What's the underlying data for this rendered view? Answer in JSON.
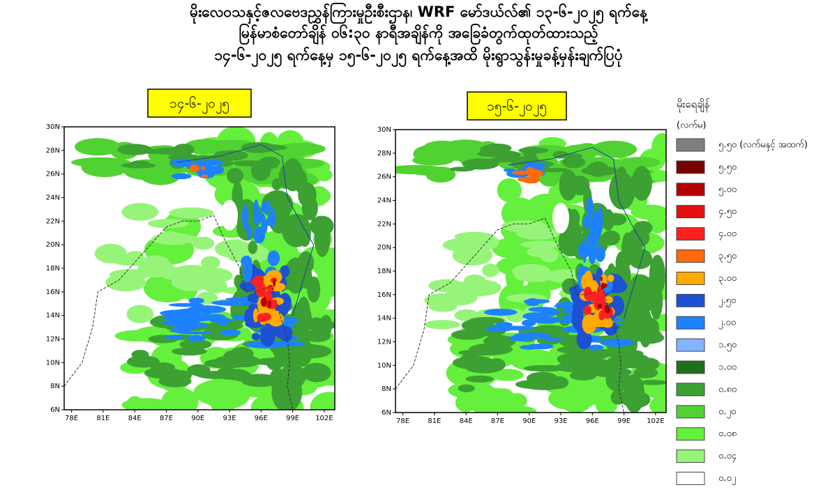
{
  "header": {
    "lines": [
      "မိုးလေဝသနှင့်ဇလဗေဒညွှန်ကြားမှုဦးစီးဌာန၊ WRF မော်ဒယ်လ်၏ ၁၃-၆-၂၀၂၅ ရက်နေ့",
      "မြန်မာစံတော်ချိန် ၀၆:၃၀ နာရီအချိန်ကို အခြေခံတွက်ထုတ်ထားသည့်",
      "၁၄-၆-၂၀၂၅ ရက်နေ့မှ ၁၅-၆-၂၀၂၅ ရက်နေ့အထိ မိုးရွာသွန်းမှုခန့်မှန်းချက်ပြပုံ"
    ]
  },
  "maps": [
    {
      "label": "၁၄-၆-၂၀၂၅"
    },
    {
      "label": "၁၅-၆-၂၀၂၅"
    }
  ],
  "axes": {
    "xlim": [
      77.3,
      103
    ],
    "ylim": [
      6,
      30
    ],
    "xticks": [
      {
        "value": 78,
        "label": "78E"
      },
      {
        "value": 81,
        "label": "81E"
      },
      {
        "value": 84,
        "label": "84E"
      },
      {
        "value": 87,
        "label": "87E"
      },
      {
        "value": 90,
        "label": "90E"
      },
      {
        "value": 93,
        "label": "93E"
      },
      {
        "value": 96,
        "label": "96E"
      },
      {
        "value": 99,
        "label": "99E"
      },
      {
        "value": 102,
        "label": "102E"
      }
    ],
    "yticks": [
      {
        "value": 6,
        "label": "6N"
      },
      {
        "value": 8,
        "label": "8N"
      },
      {
        "value": 10,
        "label": "10N"
      },
      {
        "value": 12,
        "label": "12N"
      },
      {
        "value": 14,
        "label": "14N"
      },
      {
        "value": 16,
        "label": "16N"
      },
      {
        "value": 18,
        "label": "18N"
      },
      {
        "value": 20,
        "label": "20N"
      },
      {
        "value": 22,
        "label": "22N"
      },
      {
        "value": 24,
        "label": "24N"
      },
      {
        "value": 26,
        "label": "26N"
      },
      {
        "value": 28,
        "label": "28N"
      },
      {
        "value": 30,
        "label": "30N"
      }
    ]
  },
  "legend": {
    "title": "မိုးရေချိန်",
    "unit": "(လက်မ)",
    "items": [
      {
        "label": "၅.၅၀ (လက်မနှင့် အထက်)",
        "color": "#7f7f7f"
      },
      {
        "label": "၅.၅၀",
        "color": "#780000"
      },
      {
        "label": "၅.၀၀",
        "color": "#b40000"
      },
      {
        "label": "၄.၅၀",
        "color": "#e60f0f"
      },
      {
        "label": "၄.၀၀",
        "color": "#ff2020"
      },
      {
        "label": "၃.၅၀",
        "color": "#ff6a0a"
      },
      {
        "label": "၃.၀၀",
        "color": "#ffaa00"
      },
      {
        "label": "၂.၅၀",
        "color": "#1e50d2"
      },
      {
        "label": "၂.၀၀",
        "color": "#1e82ff"
      },
      {
        "label": "၁.၅၀",
        "color": "#82b4ff"
      },
      {
        "label": "၁.၀၀",
        "color": "#1e6e1e"
      },
      {
        "label": "၀.၈၀",
        "color": "#3ca032"
      },
      {
        "label": "၀.၂၀",
        "color": "#50d232"
      },
      {
        "label": "၀.၀၈",
        "color": "#64f03c"
      },
      {
        "label": "၀.၀၄",
        "color": "#96f578"
      },
      {
        "label": "၀.၀၂",
        "color": "#ffffff"
      }
    ]
  }
}
